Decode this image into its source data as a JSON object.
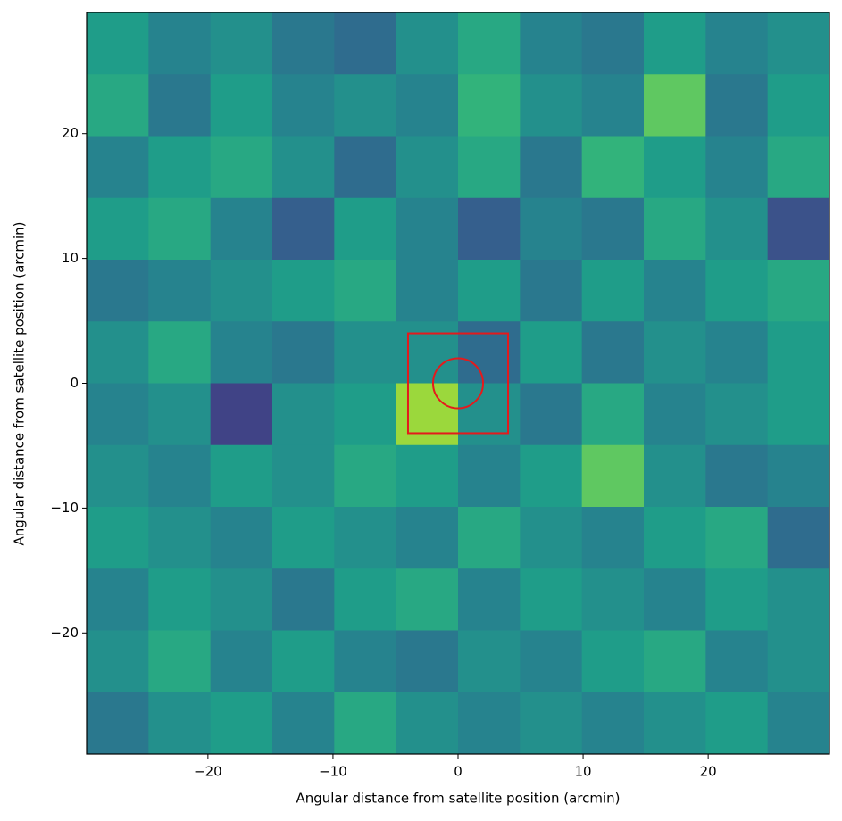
{
  "chart_data": {
    "type": "heatmap",
    "xlabel": "Angular distance from satellite position (arcmin)",
    "ylabel": "Angular distance from satellite position (arcmin)",
    "xlim": [
      -29.7,
      29.7
    ],
    "ylim": [
      -29.7,
      29.7
    ],
    "xticks": [
      {
        "value": -20,
        "label": "−20"
      },
      {
        "value": -10,
        "label": "−10"
      },
      0,
      10,
      20
    ],
    "yticks": [
      {
        "value": -20,
        "label": "−20"
      },
      {
        "value": -10,
        "label": "−10"
      },
      0,
      10,
      20
    ],
    "colormap": "viridis",
    "zlim": [
      0,
      1
    ],
    "z": [
      [
        0.55,
        0.45,
        0.5,
        0.4,
        0.35,
        0.5,
        0.6,
        0.45,
        0.4,
        0.55,
        0.45,
        0.5
      ],
      [
        0.6,
        0.4,
        0.55,
        0.45,
        0.5,
        0.45,
        0.65,
        0.5,
        0.45,
        0.75,
        0.4,
        0.55
      ],
      [
        0.45,
        0.55,
        0.6,
        0.5,
        0.35,
        0.5,
        0.6,
        0.4,
        0.65,
        0.55,
        0.45,
        0.6
      ],
      [
        0.55,
        0.6,
        0.45,
        0.3,
        0.55,
        0.45,
        0.3,
        0.45,
        0.4,
        0.6,
        0.5,
        0.25
      ],
      [
        0.4,
        0.45,
        0.5,
        0.55,
        0.6,
        0.45,
        0.55,
        0.4,
        0.55,
        0.45,
        0.55,
        0.6
      ],
      [
        0.5,
        0.6,
        0.45,
        0.4,
        0.5,
        0.5,
        0.35,
        0.55,
        0.4,
        0.5,
        0.45,
        0.55
      ],
      [
        0.45,
        0.5,
        0.2,
        0.5,
        0.55,
        0.85,
        0.5,
        0.4,
        0.6,
        0.45,
        0.5,
        0.55
      ],
      [
        0.5,
        0.45,
        0.55,
        0.5,
        0.6,
        0.55,
        0.45,
        0.55,
        0.75,
        0.5,
        0.4,
        0.45
      ],
      [
        0.55,
        0.5,
        0.45,
        0.55,
        0.5,
        0.45,
        0.6,
        0.5,
        0.45,
        0.55,
        0.6,
        0.35
      ],
      [
        0.45,
        0.55,
        0.5,
        0.4,
        0.55,
        0.6,
        0.45,
        0.55,
        0.5,
        0.45,
        0.55,
        0.5
      ],
      [
        0.5,
        0.6,
        0.45,
        0.55,
        0.45,
        0.4,
        0.5,
        0.45,
        0.55,
        0.6,
        0.45,
        0.5
      ],
      [
        0.4,
        0.5,
        0.55,
        0.45,
        0.6,
        0.5,
        0.45,
        0.5,
        0.45,
        0.5,
        0.55,
        0.45
      ]
    ],
    "square": {
      "x0": -4,
      "x1": 4,
      "y0": -4,
      "y1": 4,
      "color": "#e41a1c"
    },
    "circle": {
      "cx": 0,
      "cy": 0,
      "r": 2,
      "color": "#e41a1c"
    }
  }
}
